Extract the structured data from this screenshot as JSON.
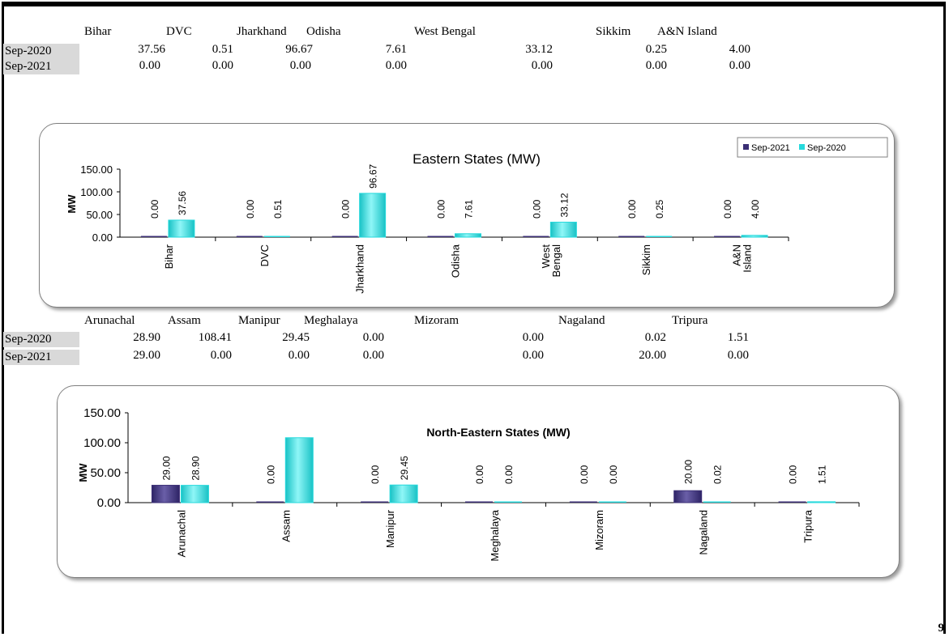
{
  "page_number": "9",
  "colors": {
    "sep2021": "#3b2f75",
    "sep2020": "#26d9dc",
    "row_label_bg": "#d9d9d9"
  },
  "eastern": {
    "headers": [
      "Bihar",
      "DVC",
      "Jharkhand",
      "Odisha",
      "West Bengal",
      "Sikkim",
      "A&N Island"
    ],
    "rows": [
      {
        "label": "Sep-2020",
        "values": [
          "37.56",
          "0.51",
          "96.67",
          "7.61",
          "33.12",
          "0.25",
          "4.00"
        ]
      },
      {
        "label": "Sep-2021",
        "values": [
          "0.00",
          "0.00",
          "0.00",
          "0.00",
          "0.00",
          "0.00",
          "0.00"
        ]
      }
    ]
  },
  "north_eastern": {
    "headers": [
      "Arunachal",
      "Assam",
      "Manipur",
      "Meghalaya",
      "Mizoram",
      "Nagaland",
      "Tripura"
    ],
    "rows": [
      {
        "label": "Sep-2020",
        "values": [
          "28.90",
          "108.41",
          "29.45",
          "0.00",
          "0.00",
          "0.02",
          "1.51"
        ]
      },
      {
        "label": "Sep-2021",
        "values": [
          "29.00",
          "0.00",
          "0.00",
          "0.00",
          "0.00",
          "20.00",
          "0.00"
        ]
      }
    ]
  },
  "chart_data": [
    {
      "type": "bar",
      "title": "Eastern States (MW)",
      "ylabel": "MW",
      "ylim": [
        0,
        150
      ],
      "yticks": [
        "150.00",
        "100.00",
        "50.00",
        "0.00"
      ],
      "legend_position": "top-right",
      "categories": [
        "Bihar",
        "DVC",
        "Jharkhand",
        "Odisha",
        "West Bengal",
        "Sikkim",
        "A&N Island"
      ],
      "category_lines": [
        [
          "Bihar"
        ],
        [
          "DVC"
        ],
        [
          "Jharkhand"
        ],
        [
          "Odisha"
        ],
        [
          "West",
          "Bengal"
        ],
        [
          "Sikkim"
        ],
        [
          "A&N",
          "Island"
        ]
      ],
      "series": [
        {
          "name": "Sep-2021",
          "values": [
            0.0,
            0.0,
            0.0,
            0.0,
            0.0,
            0.0,
            0.0
          ],
          "labels": [
            "0.00",
            "0.00",
            "0.00",
            "0.00",
            "0.00",
            "0.00",
            "0.00"
          ]
        },
        {
          "name": "Sep-2020",
          "values": [
            37.56,
            0.51,
            96.67,
            7.61,
            33.12,
            0.25,
            4.0
          ],
          "labels": [
            "37.56",
            "0.51",
            "96.67",
            "7.61",
            "33.12",
            "0.25",
            "4.00"
          ]
        }
      ]
    },
    {
      "type": "bar",
      "title": "North-Eastern States (MW)",
      "ylabel": "MW",
      "ylim": [
        0,
        150
      ],
      "yticks": [
        "150.00",
        "100.00",
        "50.00",
        "0.00"
      ],
      "categories": [
        "Arunachal",
        "Assam",
        "Manipur",
        "Meghalaya",
        "Mizoram",
        "Nagaland",
        "Tripura"
      ],
      "category_lines": [
        [
          "Arunachal"
        ],
        [
          "Assam"
        ],
        [
          "Manipur"
        ],
        [
          "Meghalaya"
        ],
        [
          "Mizoram"
        ],
        [
          "Nagaland"
        ],
        [
          "Tripura"
        ]
      ],
      "series": [
        {
          "name": "Sep-2021",
          "values": [
            29.0,
            0.0,
            0.0,
            0.0,
            0.0,
            20.0,
            0.0
          ],
          "labels": [
            "29.00",
            "0.00",
            "0.00",
            "0.00",
            "0.00",
            "20.00",
            "0.00"
          ]
        },
        {
          "name": "Sep-2020",
          "values": [
            28.9,
            108.41,
            29.45,
            0.0,
            0.0,
            0.02,
            1.51
          ],
          "labels": [
            "28.90",
            "",
            "29.45",
            "0.00",
            "0.00",
            "0.02",
            "1.51"
          ]
        }
      ]
    }
  ]
}
